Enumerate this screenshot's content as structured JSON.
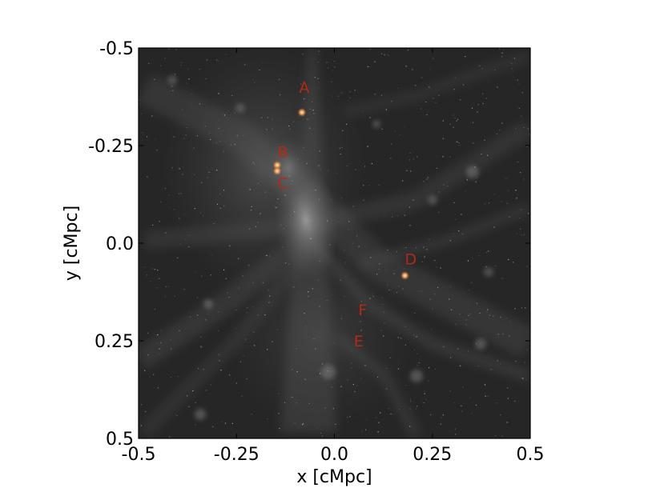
{
  "chart_data": {
    "type": "scatter",
    "title": "",
    "xlabel": "x [cMpc]",
    "ylabel": "y [cMpc]",
    "xlim": [
      -0.5,
      0.5
    ],
    "ylim": [
      -0.5,
      0.5
    ],
    "y_axis_inverted": true,
    "grid": false,
    "background": "density projection image (grayscale cosmic web filaments)",
    "x_ticks": [
      {
        "value": -0.5,
        "label": "-0.5"
      },
      {
        "value": -0.25,
        "label": "-0.25"
      },
      {
        "value": 0.0,
        "label": "0.0"
      },
      {
        "value": 0.25,
        "label": "0.25"
      },
      {
        "value": 0.5,
        "label": "0.5"
      }
    ],
    "y_ticks": [
      {
        "value": -0.5,
        "label": "-0.5"
      },
      {
        "value": -0.25,
        "label": "-0.25"
      },
      {
        "value": 0.0,
        "label": "0.0"
      },
      {
        "value": 0.25,
        "label": "0.25"
      },
      {
        "value": 0.5,
        "label": "0.5"
      }
    ],
    "annotations": [
      {
        "label": "A",
        "x": -0.077,
        "y": -0.4
      },
      {
        "label": "B",
        "x": -0.132,
        "y": -0.235
      },
      {
        "label": "C",
        "x": -0.132,
        "y": -0.155
      },
      {
        "label": "D",
        "x": 0.195,
        "y": 0.04
      },
      {
        "label": "E",
        "x": 0.062,
        "y": 0.25
      },
      {
        "label": "F",
        "x": 0.072,
        "y": 0.17
      }
    ],
    "sources": [
      {
        "x": -0.083,
        "y": -0.335
      },
      {
        "x": -0.146,
        "y": -0.2
      },
      {
        "x": -0.146,
        "y": -0.185
      },
      {
        "x": 0.18,
        "y": 0.083
      }
    ],
    "colors": {
      "annotation": "#b22a14",
      "source": "#f2a35c",
      "panel": "#262626"
    }
  }
}
